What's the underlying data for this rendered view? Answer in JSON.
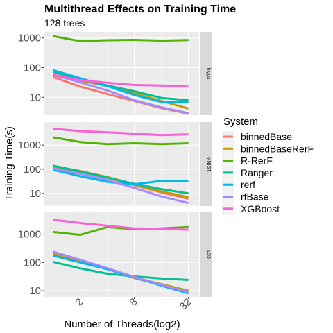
{
  "title": "Multithread Effects on Training Time",
  "subtitle": "128 trees",
  "chart_data": {
    "type": "line",
    "title": "Multithread Effects on Training Time",
    "subtitle": "128 trees",
    "xlabel": "Number of Threads(log2)",
    "ylabel": "Training Time(s)",
    "x": [
      1,
      2,
      4,
      8,
      16,
      32
    ],
    "x_scale": "log2",
    "x_ticks": [
      "2",
      "8",
      "32"
    ],
    "y_scale": "log10",
    "y_ticks": [
      "10",
      "100",
      "1000"
    ],
    "grid": true,
    "legend": {
      "title": "System",
      "placement": "right"
    },
    "colors": {
      "binnedBase": "#F8766D",
      "binnedBaseRerF": "#C49A00",
      "R-RerF": "#53B400",
      "Ranger": "#00C094",
      "rerf": "#00B6EB",
      "rfBase": "#A58AFF",
      "XGBoost": "#FB61D7"
    },
    "panels": [
      {
        "name": "higgs",
        "ylim": [
          2.5,
          1600
        ],
        "series": [
          {
            "name": "binnedBase",
            "values": [
              48,
              23,
              13,
              7.5,
              4.3,
              2.8
            ]
          },
          {
            "name": "binnedBaseRerF",
            "values": [
              58,
              37,
              24,
              14,
              7.5,
              4.2
            ]
          },
          {
            "name": "R-RerF",
            "values": [
              1150,
              780,
              840,
              860,
              810,
              850
            ]
          },
          {
            "name": "Ranger",
            "values": [
              72,
              40,
              25,
              16,
              9.5,
              8
            ]
          },
          {
            "name": "rerf",
            "values": [
              82,
              44,
              24,
              12,
              7,
              7
            ]
          },
          {
            "name": "rfBase",
            "values": [
              57,
              32,
              17,
              8,
              4.6,
              2.9
            ]
          },
          {
            "name": "XGBoost",
            "values": [
              57,
              38,
              31,
              26,
              25,
              23
            ]
          }
        ]
      },
      {
        "name": "MNIST",
        "ylim": [
          3,
          9000
        ],
        "series": [
          {
            "name": "binnedBase",
            "values": [
              120,
              80,
              45,
              22,
              11,
              6
            ]
          },
          {
            "name": "binnedBaseRerF",
            "values": [
              130,
              85,
              48,
              24,
              12,
              7
            ]
          },
          {
            "name": "R-RerF",
            "values": [
              2100,
              1350,
              1100,
              1200,
              1100,
              1200
            ]
          },
          {
            "name": "Ranger",
            "values": [
              140,
              82,
              45,
              25,
              15,
              10
            ]
          },
          {
            "name": "rerf",
            "values": [
              95,
              52,
              30,
              24,
              33,
              33
            ]
          },
          {
            "name": "rfBase",
            "values": [
              110,
              65,
              36,
              17,
              7.5,
              4
            ]
          },
          {
            "name": "XGBoost",
            "values": [
              4800,
              3800,
              3400,
              3000,
              2600,
              2800
            ]
          }
        ]
      },
      {
        "name": "p53",
        "ylim": [
          6,
          6000
        ],
        "series": [
          {
            "name": "binnedBase",
            "values": [
              190,
              120,
              62,
              28,
              16,
              10
            ]
          },
          {
            "name": "binnedBaseRerF",
            "values": [
              205,
              115,
              60,
              29,
              17,
              10
            ]
          },
          {
            "name": "R-RerF",
            "values": [
              1200,
              950,
              1800,
              1500,
              1600,
              1800
            ]
          },
          {
            "name": "Ranger",
            "values": [
              105,
              62,
              40,
              32,
              27,
              24
            ]
          },
          {
            "name": "rerf",
            "values": [
              175,
              100,
              58,
              30,
              15,
              8
            ]
          },
          {
            "name": "rfBase",
            "values": [
              240,
              125,
              63,
              31,
              16,
              9
            ]
          },
          {
            "name": "XGBoost",
            "values": [
              3300,
              2500,
              2000,
              1600,
              1550,
              1450
            ]
          }
        ]
      }
    ]
  }
}
